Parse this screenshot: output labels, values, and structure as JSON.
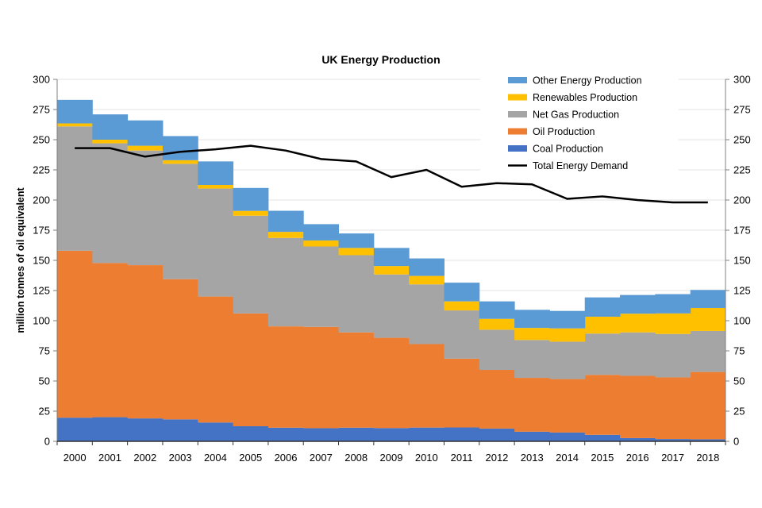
{
  "chart_data": {
    "type": "area",
    "subtype": "stacked-step-area-with-line",
    "title": "UK Energy Production",
    "xlabel": "",
    "ylabel": "million tonnes of oil equivalent",
    "ylim": [
      0,
      300
    ],
    "yticks": [
      0,
      25,
      50,
      75,
      100,
      125,
      150,
      175,
      200,
      225,
      250,
      275,
      300
    ],
    "secondary_yticks": [
      0,
      25,
      50,
      75,
      100,
      125,
      150,
      175,
      200,
      225,
      250,
      275,
      300
    ],
    "grid": true,
    "legend_position": "top-right",
    "categories": [
      "2000",
      "2001",
      "2002",
      "2003",
      "2004",
      "2005",
      "2006",
      "2007",
      "2008",
      "2009",
      "2010",
      "2011",
      "2012",
      "2013",
      "2014",
      "2015",
      "2016",
      "2017",
      "2018"
    ],
    "series": [
      {
        "name": "Coal Production",
        "color": "#4472C4",
        "kind": "stack",
        "values": [
          19.6,
          20.0,
          19.0,
          18.2,
          15.6,
          12.5,
          11.3,
          10.9,
          11.3,
          11.0,
          11.4,
          11.5,
          10.6,
          8.0,
          7.3,
          5.4,
          2.7,
          1.9,
          1.7
        ]
      },
      {
        "name": "Oil Production",
        "color": "#ED7D31",
        "kind": "stack",
        "values": [
          138.4,
          127.8,
          127.0,
          116.2,
          104.4,
          93.5,
          84.0,
          84.0,
          79.0,
          74.8,
          69.2,
          57.0,
          48.6,
          44.6,
          44.3,
          49.7,
          51.6,
          51.1,
          55.8
        ]
      },
      {
        "name": "Net Gas Production",
        "color": "#A5A5A5",
        "kind": "stack",
        "values": [
          103.0,
          99.2,
          95.0,
          95.6,
          89.5,
          81.0,
          73.3,
          66.6,
          64.0,
          52.5,
          49.5,
          40.0,
          33.3,
          31.4,
          31.0,
          34.2,
          36.0,
          36.0,
          34.0
        ]
      },
      {
        "name": "Renewables Production",
        "color": "#FFC000",
        "kind": "stack",
        "values": [
          2.5,
          3.0,
          4.0,
          3.0,
          3.0,
          4.0,
          5.0,
          5.0,
          6.0,
          7.0,
          7.0,
          7.5,
          9.0,
          10.0,
          11.0,
          14.0,
          15.5,
          17.0,
          19.0
        ]
      },
      {
        "name": "Other Energy Production",
        "color": "#5B9BD5",
        "kind": "stack",
        "values": [
          19.5,
          21.0,
          21.0,
          20.0,
          19.5,
          19.0,
          17.5,
          13.5,
          12.0,
          15.0,
          14.5,
          15.5,
          14.5,
          15.0,
          14.5,
          16.0,
          15.5,
          16.0,
          15.0
        ]
      },
      {
        "name": "Total Energy Demand",
        "color": "#000000",
        "kind": "line",
        "values": [
          243,
          243,
          236,
          240,
          242,
          245,
          241,
          234,
          232,
          219,
          225,
          211,
          214,
          213,
          201,
          203,
          200,
          198,
          198
        ]
      }
    ],
    "legend_order": [
      "Other Energy Production",
      "Renewables Production",
      "Net Gas Production",
      "Oil Production",
      "Coal Production",
      "Total Energy Demand"
    ]
  }
}
